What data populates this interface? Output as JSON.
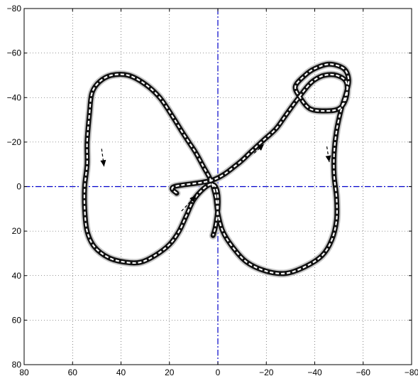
{
  "chart_data": {
    "type": "line",
    "title": "",
    "xlabel": "",
    "ylabel": "",
    "xlim": [
      80,
      -80
    ],
    "ylim": [
      80,
      -80
    ],
    "x_reversed": true,
    "y_reversed": true,
    "x_ticks": [
      80,
      60,
      40,
      20,
      0,
      -20,
      -40,
      -60,
      -80
    ],
    "y_ticks": [
      -80,
      -60,
      -40,
      -20,
      0,
      20,
      40,
      60,
      80
    ],
    "x_tick_labels": [
      "80",
      "60",
      "40",
      "20",
      "0",
      "−20",
      "−40",
      "−60",
      "−80"
    ],
    "y_tick_labels": [
      "−80",
      "−60",
      "−40",
      "−20",
      "0",
      "20",
      "40",
      "60",
      "80"
    ],
    "grid": true,
    "zero_lines": true,
    "colors": {
      "trajectory": "#111111",
      "trajectory_band": "#c8c8c8",
      "zero_line": "#0000cc",
      "grid": "#000000"
    },
    "series": [
      {
        "points": [
          [
            17,
            3
          ],
          [
            18,
            0
          ],
          [
            2,
            -3
          ],
          [
            -8,
            -10
          ],
          [
            -14,
            -16
          ],
          [
            -19,
            -21
          ],
          [
            -24,
            -26
          ],
          [
            -28,
            -32
          ],
          [
            -32,
            -38
          ],
          [
            -37,
            -45
          ],
          [
            -40,
            -48
          ],
          [
            -44,
            -50
          ],
          [
            -49,
            -50
          ],
          [
            -53,
            -47
          ],
          [
            -53,
            -40
          ],
          [
            -50,
            -35
          ],
          [
            -44,
            -34
          ],
          [
            -38,
            -35
          ],
          [
            -34,
            -40
          ],
          [
            -32,
            -45
          ],
          [
            -36,
            -50
          ],
          [
            -40,
            -53
          ],
          [
            -46,
            -55
          ],
          [
            -52,
            -53
          ],
          [
            -54,
            -48
          ],
          [
            -53,
            -42
          ],
          [
            -51,
            -35
          ],
          [
            -49,
            -25
          ],
          [
            -48,
            -15
          ],
          [
            -48,
            -5
          ],
          [
            -49,
            5
          ],
          [
            -49,
            15
          ],
          [
            -47,
            24
          ],
          [
            -43,
            31
          ],
          [
            -36,
            36
          ],
          [
            -28,
            39
          ],
          [
            -20,
            38
          ],
          [
            -12,
            34
          ],
          [
            -6,
            27
          ],
          [
            -2,
            20
          ],
          [
            0,
            12
          ],
          [
            1,
            4
          ],
          [
            3,
            -3
          ],
          [
            6,
            -9
          ],
          [
            9,
            -15
          ],
          [
            12,
            -20
          ],
          [
            15,
            -25
          ],
          [
            19,
            -32
          ],
          [
            24,
            -40
          ],
          [
            30,
            -46
          ],
          [
            37,
            -50
          ],
          [
            44,
            -50
          ],
          [
            49,
            -47
          ],
          [
            52,
            -42
          ],
          [
            53,
            -33
          ],
          [
            54,
            -20
          ],
          [
            54,
            -10
          ],
          [
            55,
            0
          ],
          [
            55,
            10
          ],
          [
            54,
            20
          ],
          [
            51,
            27
          ],
          [
            45,
            32
          ],
          [
            38,
            34
          ],
          [
            32,
            34
          ],
          [
            26,
            31
          ],
          [
            20,
            26
          ],
          [
            16,
            20
          ],
          [
            13,
            13
          ],
          [
            10,
            6
          ],
          [
            6,
            1
          ],
          [
            3,
            -1
          ],
          [
            1,
            0
          ],
          [
            0,
            4
          ],
          [
            0,
            10
          ],
          [
            1,
            18
          ],
          [
            2,
            22
          ]
        ]
      }
    ],
    "direction_arrows": [
      {
        "from": [
          48,
          -17
        ],
        "to": [
          47,
          -9
        ]
      },
      {
        "from": [
          15,
          11
        ],
        "to": [
          9,
          4
        ]
      },
      {
        "from": [
          -15,
          -15
        ],
        "to": [
          -19,
          -19
        ]
      },
      {
        "from": [
          -45,
          -18
        ],
        "to": [
          -46,
          -11
        ]
      }
    ]
  }
}
